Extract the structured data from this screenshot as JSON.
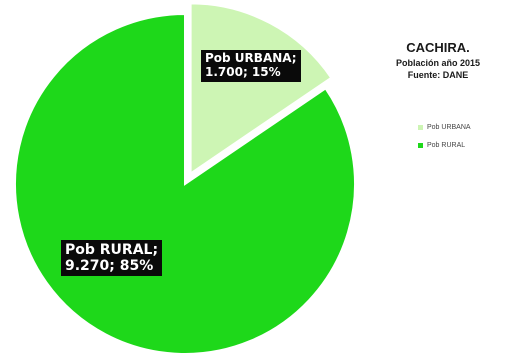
{
  "chart_data": {
    "type": "pie",
    "title": "CACHIRA.",
    "subtitle": "Población año 2015",
    "source": "Fuente: DANE",
    "legend_position": "right",
    "slices": [
      {
        "name": "Pob URBANA",
        "value": 1700,
        "percent": 15,
        "color": "#cdf5b4",
        "label_line1": "Pob URBANA;",
        "label_line2": "1.700; 15%",
        "exploded": true
      },
      {
        "name": "Pob RURAL",
        "value": 9270,
        "percent": 85,
        "color": "#1ed81a",
        "label_line1": "Pob RURAL;",
        "label_line2": "9.270; 85%",
        "exploded": false
      }
    ]
  }
}
